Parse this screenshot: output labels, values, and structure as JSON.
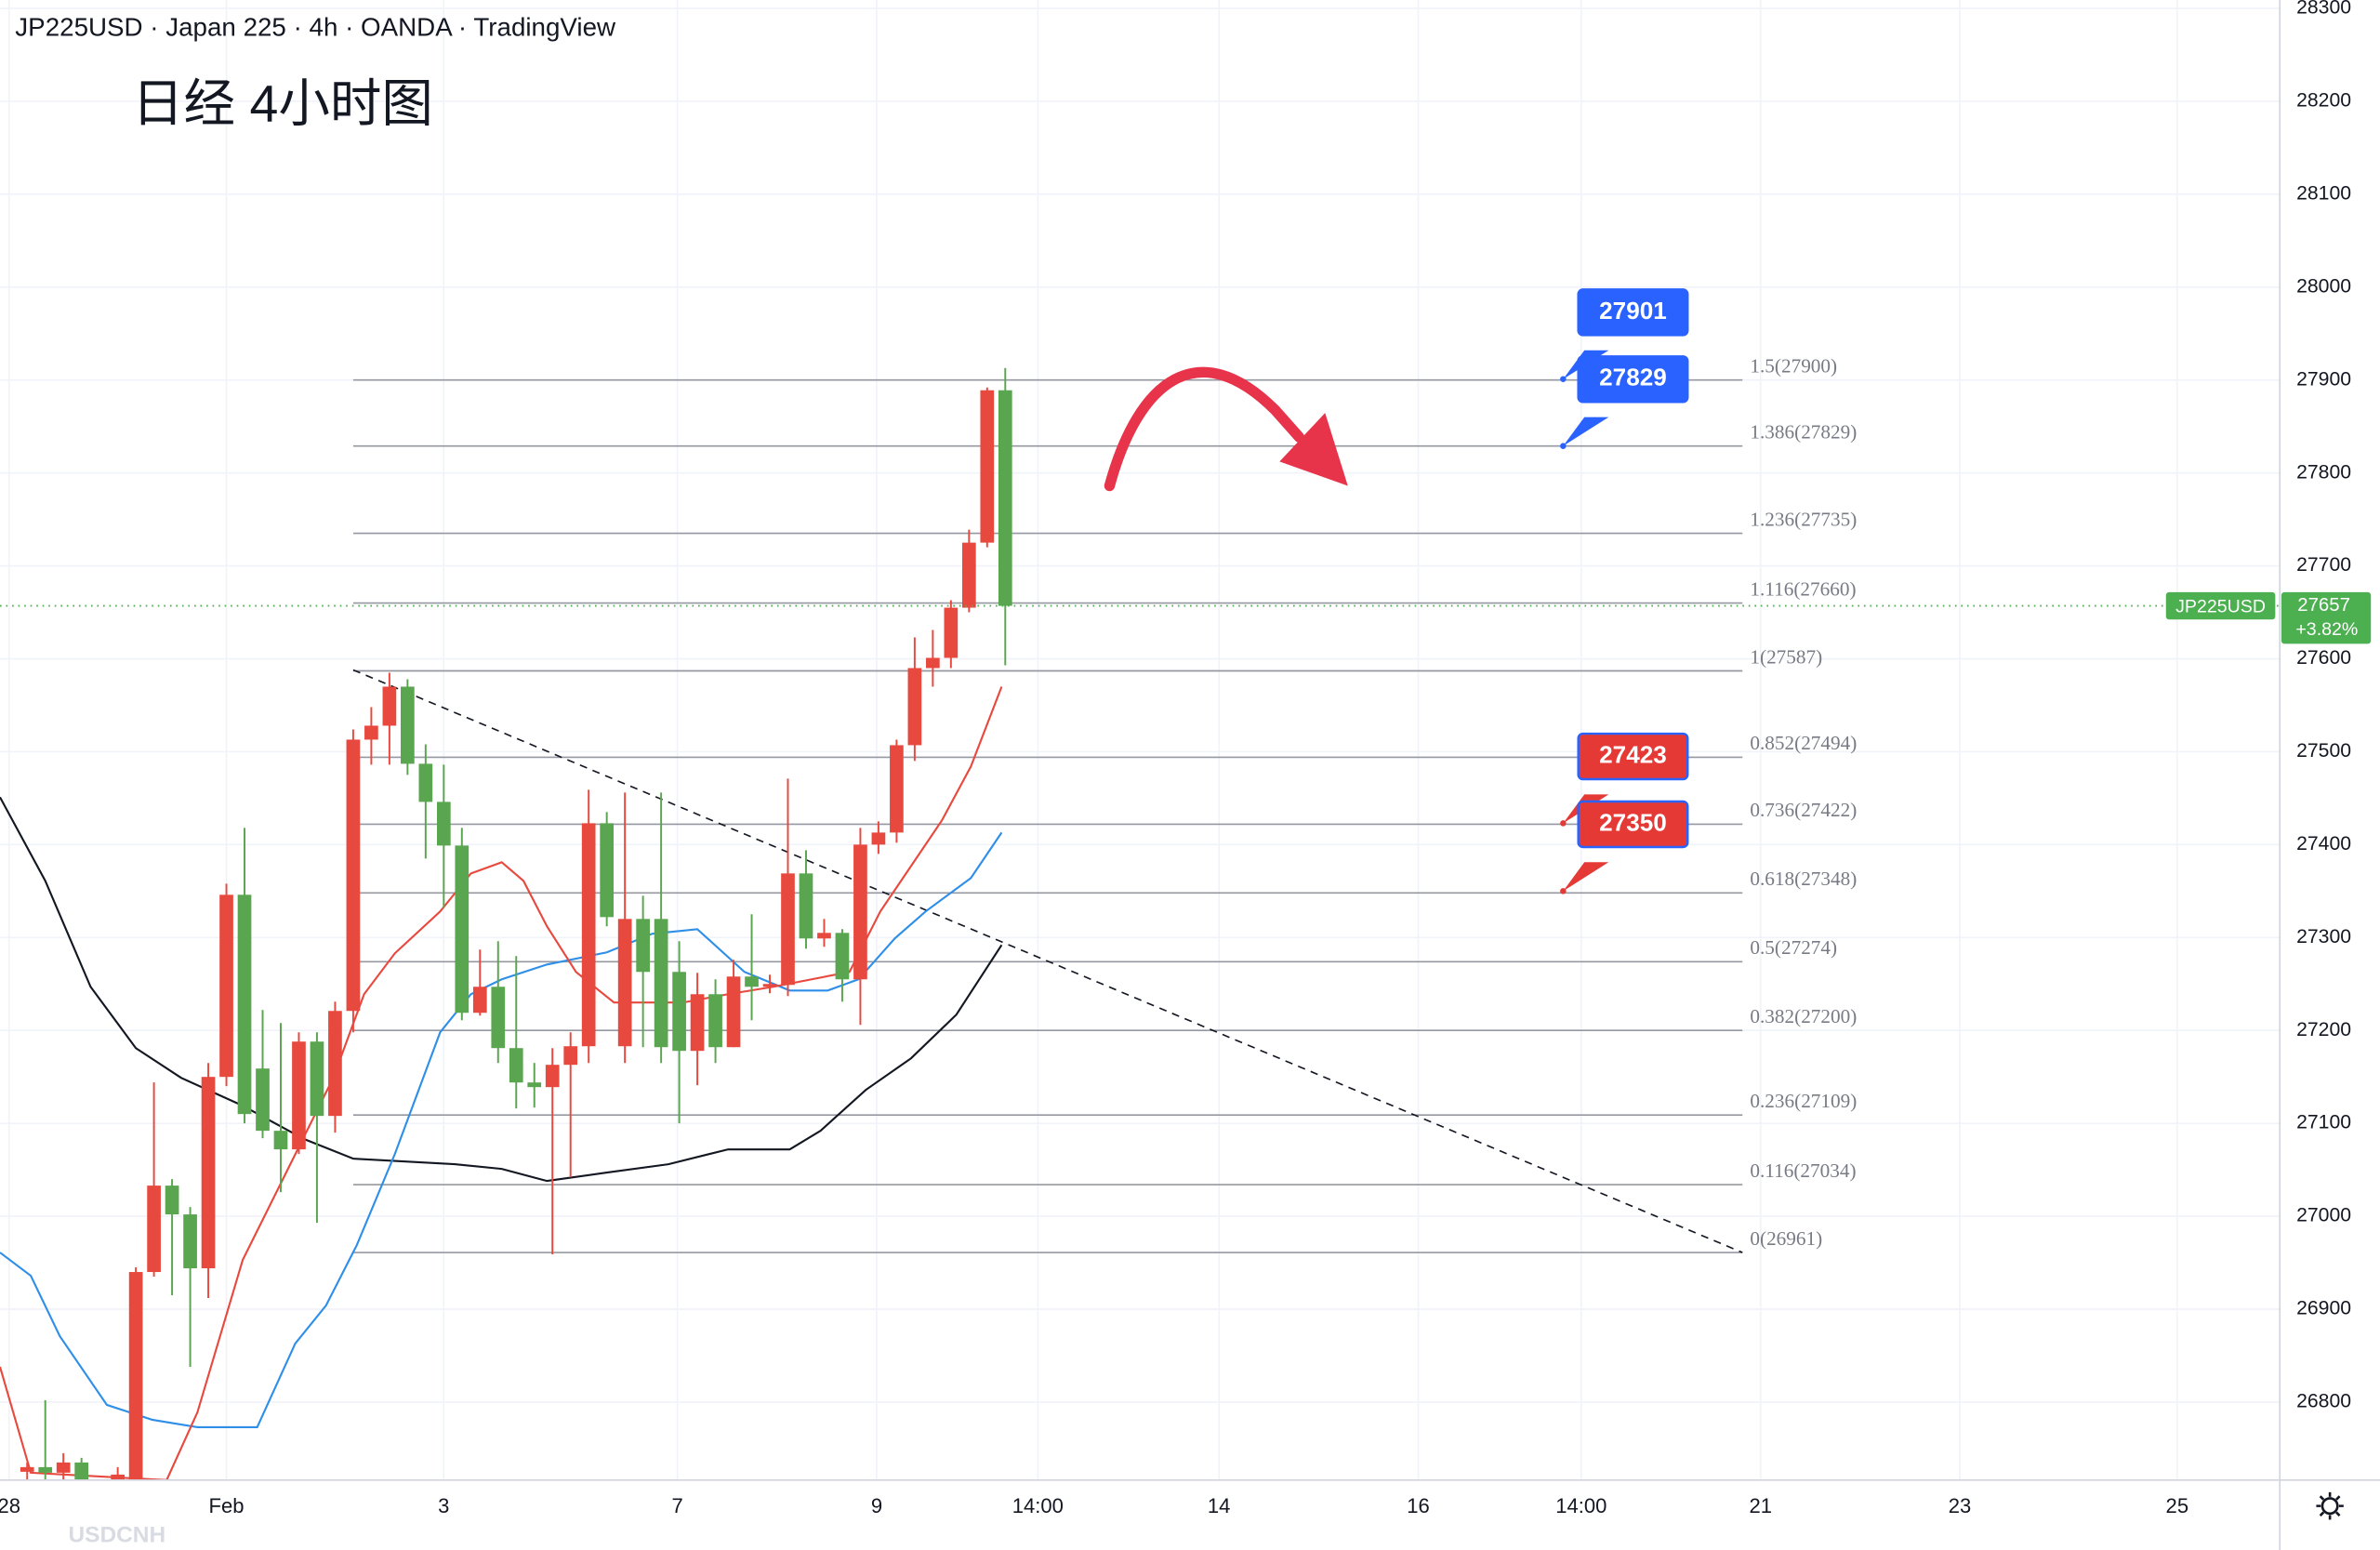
{
  "header": "JP225USD · Japan 225 · 4h · OANDA · TradingView",
  "chart_data": {
    "type": "candlestick",
    "title": "日经 4小时图",
    "ylim": [
      26716,
      28309
    ],
    "yticks": [
      26800,
      26900,
      27000,
      27100,
      27200,
      27300,
      27400,
      27500,
      27600,
      27700,
      27800,
      27900,
      28000,
      28100,
      28200,
      28300
    ],
    "xlim": [
      -1.5,
      124.2
    ],
    "xticks": [
      {
        "value": -1.0,
        "label": "28"
      },
      {
        "value": 11.0,
        "label": "Feb"
      },
      {
        "value": 23.0,
        "label": "3"
      },
      {
        "value": 35.9,
        "label": "7"
      },
      {
        "value": 46.9,
        "label": "9"
      },
      {
        "value": 55.8,
        "label": "14:00"
      },
      {
        "value": 65.8,
        "label": "14"
      },
      {
        "value": 76.8,
        "label": "16"
      },
      {
        "value": 85.8,
        "label": "14:00"
      },
      {
        "value": 95.7,
        "label": "21"
      },
      {
        "value": 106.7,
        "label": "23"
      },
      {
        "value": 118.7,
        "label": "25"
      }
    ],
    "grid": true,
    "up_color": "#e8493f",
    "down_color": "#5aa54f",
    "x": [
      0,
      1,
      2,
      3,
      4,
      5,
      6,
      7,
      8,
      9,
      10,
      11,
      12,
      13,
      14,
      15,
      16,
      17,
      18,
      19,
      20,
      21,
      22,
      23,
      24,
      25,
      26,
      27,
      28,
      29,
      30,
      31,
      32,
      33,
      34,
      35,
      36,
      37,
      38,
      39,
      40,
      41,
      42,
      43,
      44,
      45,
      46,
      47,
      48,
      49,
      50,
      51,
      52,
      53,
      54
    ],
    "open": [
      26725,
      26730,
      26724,
      26735,
      26700,
      26690,
      26716,
      26940,
      27033,
      27002,
      26944,
      27150,
      27346,
      27159,
      27092,
      27072,
      27188,
      27108,
      27221,
      27513,
      27528,
      27570,
      27487,
      27446,
      27399,
      27219,
      27247,
      27181,
      27144,
      27139,
      27163,
      27183,
      27423,
      27183,
      27320,
      27320,
      27263,
      27178,
      27239,
      27182,
      27258,
      27247,
      27249,
      27369,
      27299,
      27305,
      27255,
      27400,
      27413,
      27507,
      27590,
      27601,
      27655,
      27725,
      27889
    ],
    "high": [
      26735,
      26802,
      26745,
      26740,
      26715,
      26730,
      26945,
      27144,
      27040,
      27010,
      27165,
      27358,
      27418,
      27222,
      27208,
      27198,
      27198,
      27231,
      27524,
      27548,
      27585,
      27578,
      27508,
      27486,
      27418,
      27287,
      27296,
      27280,
      27165,
      27181,
      27198,
      27459,
      27435,
      27456,
      27345,
      27456,
      27296,
      27262,
      27255,
      27276,
      27325,
      27260,
      27471,
      27394,
      27320,
      27309,
      27418,
      27425,
      27513,
      27623,
      27631,
      27663,
      27739,
      27892,
      27913
    ],
    "low": [
      26712,
      26712,
      26715,
      26690,
      26670,
      26685,
      26700,
      26935,
      26915,
      26838,
      26912,
      27140,
      27100,
      27084,
      27026,
      27067,
      26993,
      27090,
      27198,
      27486,
      27486,
      27475,
      27385,
      27332,
      27211,
      27216,
      27165,
      27116,
      27117,
      26959,
      27042,
      27165,
      27312,
      27165,
      27182,
      27165,
      27100,
      27141,
      27165,
      27182,
      27211,
      27240,
      27237,
      27288,
      27290,
      27231,
      27206,
      27390,
      27402,
      27490,
      27570,
      27590,
      27650,
      27720,
      27593
    ],
    "close": [
      26730,
      26724,
      26735,
      26700,
      26690,
      26722,
      26940,
      27033,
      27002,
      26944,
      27150,
      27346,
      27110,
      27092,
      27072,
      27188,
      27108,
      27221,
      27513,
      27528,
      27570,
      27487,
      27446,
      27399,
      27219,
      27247,
      27181,
      27144,
      27139,
      27163,
      27183,
      27423,
      27322,
      27320,
      27263,
      27182,
      27178,
      27239,
      27182,
      27258,
      27247,
      27250,
      27369,
      27299,
      27305,
      27255,
      27400,
      27413,
      27507,
      27590,
      27601,
      27655,
      27725,
      27889,
      27657
    ],
    "moving_averages": [
      {
        "color": "#131722",
        "x": [
          -1.5,
          1.0,
          3.5,
          6.0,
          8.5,
          11.9,
          15.3,
          18.0,
          23.6,
          26.2,
          28.7,
          32.0,
          35.4,
          38.7,
          42.1,
          43.8,
          46.3,
          48.8,
          51.3,
          53.8
        ],
        "values": [
          27451,
          27361,
          27247,
          27181,
          27149,
          27119,
          27083,
          27062,
          27056,
          27051,
          27038,
          27047,
          27056,
          27072,
          27072,
          27092,
          27136,
          27170,
          27217,
          27292
        ]
      },
      {
        "color": "#2f8fe8",
        "x": [
          -1.5,
          0.2,
          1.8,
          4.4,
          6.9,
          9.4,
          12.7,
          14.8,
          16.5,
          18.2,
          20.3,
          22.8,
          24.5,
          26.2,
          28.7,
          32.0,
          34.5,
          37.0,
          39.6,
          42.1,
          44.2,
          45.9,
          47.9,
          49.6,
          52.1,
          53.8
        ],
        "values": [
          26961,
          26936,
          26871,
          26797,
          26781,
          26773,
          26773,
          26863,
          26904,
          26969,
          27067,
          27198,
          27239,
          27255,
          27271,
          27284,
          27304,
          27309,
          27263,
          27243,
          27243,
          27255,
          27299,
          27328,
          27364,
          27413
        ]
      },
      {
        "color": "#e8493f",
        "x": [
          -1.5,
          0.2,
          7.7,
          9.4,
          11.9,
          14.4,
          16.9,
          18.6,
          20.3,
          22.8,
          24.5,
          26.2,
          27.4,
          28.7,
          30.3,
          32.4,
          36.2,
          38.7,
          41.2,
          45.4,
          47.1,
          48.8,
          50.5,
          52.1,
          53.8
        ],
        "values": [
          26838,
          26724,
          26716,
          26789,
          26953,
          27051,
          27149,
          27239,
          27283,
          27328,
          27369,
          27381,
          27361,
          27312,
          27263,
          27230,
          27230,
          27239,
          27247,
          27263,
          27328,
          27377,
          27426,
          27484,
          27570
        ]
      }
    ],
    "trendline": {
      "x": [
        18.0,
        94.7
      ],
      "values": [
        27588,
        26961
      ]
    },
    "fib": {
      "x": [
        18.0,
        94.7
      ],
      "levels": [
        {
          "value": 27900,
          "label": "1.5(27900)"
        },
        {
          "value": 27829,
          "label": "1.386(27829)"
        },
        {
          "value": 27735,
          "label": "1.236(27735)"
        },
        {
          "value": 27660,
          "label": "1.116(27660)"
        },
        {
          "value": 27587,
          "label": "1(27587)"
        },
        {
          "value": 27494,
          "label": "0.852(27494)"
        },
        {
          "value": 27422,
          "label": "0.736(27422)"
        },
        {
          "value": 27348,
          "label": "0.618(27348)"
        },
        {
          "value": 27274,
          "label": "0.5(27274)"
        },
        {
          "value": 27200,
          "label": "0.382(27200)"
        },
        {
          "value": 27109,
          "label": "0.236(27109)"
        },
        {
          "value": 27034,
          "label": "0.116(27034)"
        },
        {
          "value": 26961,
          "label": "0(26961)"
        }
      ]
    },
    "price_tags": [
      {
        "value": 27901,
        "x": 84.8,
        "color": "#2962ff"
      },
      {
        "value": 27829,
        "x": 84.8,
        "color": "#2962ff"
      },
      {
        "value": 27423,
        "x": 84.8,
        "color": "#e53935"
      },
      {
        "value": 27350,
        "x": 84.8,
        "color": "#e53935"
      }
    ],
    "last_price": {
      "value": 27657,
      "symbol_label": "JP225USD",
      "change_label": "+3.82%",
      "color": "#4caf50"
    },
    "footer_symbol": "USDCNH"
  }
}
